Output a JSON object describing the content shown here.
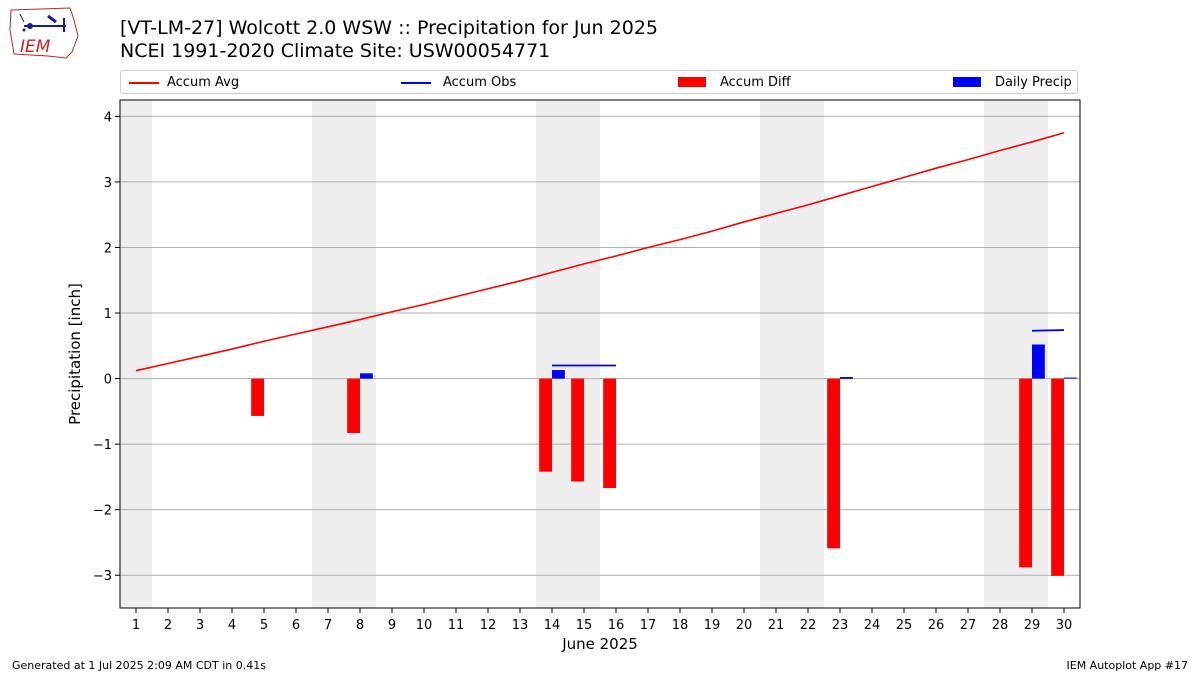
{
  "header": {
    "title_line1": "[VT-LM-27] Wolcott 2.0 WSW :: Precipitation for Jun 2025",
    "title_line2": "NCEI 1991-2020 Climate Site: USW00054771",
    "logo_text": "IEM"
  },
  "legend": {
    "items": [
      {
        "label": "Accum Avg",
        "kind": "line",
        "color": "#ff0000"
      },
      {
        "label": "Accum Obs",
        "kind": "line",
        "color": "#0000ff"
      },
      {
        "label": "Accum Diff",
        "kind": "box",
        "color": "#ff0000"
      },
      {
        "label": "Daily Precip",
        "kind": "box",
        "color": "#0000ff"
      }
    ],
    "placement": "top, above plot"
  },
  "footer": {
    "left": "Generated at 1 Jul 2025 2:09 AM CDT in 0.41s",
    "right": "IEM Autoplot App #17"
  },
  "chart_data": {
    "type": "bar",
    "xlabel": "June 2025",
    "ylabel": "Precipitation [inch]",
    "x": [
      1,
      2,
      3,
      4,
      5,
      6,
      7,
      8,
      9,
      10,
      11,
      12,
      13,
      14,
      15,
      16,
      17,
      18,
      19,
      20,
      21,
      22,
      23,
      24,
      25,
      26,
      27,
      28,
      29,
      30
    ],
    "xlim": [
      0.5,
      30.5
    ],
    "ylim": [
      -3.5,
      4.25
    ],
    "yticks": [
      -3,
      -2,
      -1,
      0,
      1,
      2,
      3,
      4
    ],
    "ytick_labels": [
      "−3",
      "−2",
      "−1",
      "0",
      "1",
      "2",
      "3",
      "4"
    ],
    "grid": "horizontal",
    "weekend_shading": [
      [
        0.5,
        1.5
      ],
      [
        6.5,
        8.5
      ],
      [
        13.5,
        15.5
      ],
      [
        20.5,
        22.5
      ],
      [
        27.5,
        29.5
      ]
    ],
    "colors": {
      "avg": "#ff0000",
      "obs": "#0000ff",
      "diff": "#ff0000",
      "daily": "#0000ff",
      "shade": "#eeeeee",
      "grid": "#b0b0b0"
    },
    "series": [
      {
        "name": "Accum Avg",
        "kind": "line",
        "x": [
          1,
          2,
          3,
          4,
          5,
          6,
          7,
          8,
          9,
          10,
          11,
          12,
          13,
          14,
          15,
          16,
          17,
          18,
          19,
          20,
          21,
          22,
          23,
          24,
          25,
          26,
          27,
          28,
          29,
          30
        ],
        "values": [
          0.12,
          0.23,
          0.34,
          0.45,
          0.57,
          0.68,
          0.79,
          0.9,
          1.02,
          1.13,
          1.25,
          1.37,
          1.49,
          1.62,
          1.75,
          1.87,
          2.0,
          2.12,
          2.25,
          2.39,
          2.52,
          2.65,
          2.79,
          2.93,
          3.07,
          3.21,
          3.34,
          3.48,
          3.61,
          3.75
        ]
      },
      {
        "name": "Accum Obs",
        "kind": "segments",
        "segments": [
          {
            "x": [
              14,
              16
            ],
            "values": [
              0.2,
              0.2
            ]
          },
          {
            "x": [
              23,
              23.4
            ],
            "values": [
              0.01,
              0.01
            ]
          },
          {
            "x": [
              29,
              30
            ],
            "values": [
              0.73,
              0.74
            ]
          }
        ]
      },
      {
        "name": "Accum Diff",
        "kind": "bar",
        "x": [
          5,
          8,
          14,
          15,
          16,
          23,
          29,
          30
        ],
        "values": [
          -0.57,
          -0.83,
          -1.42,
          -1.57,
          -1.67,
          -2.59,
          -2.88,
          -3.01
        ]
      },
      {
        "name": "Daily Precip",
        "kind": "bar",
        "x": [
          8,
          14,
          23,
          29,
          30
        ],
        "values": [
          0.08,
          0.13,
          0.01,
          0.52,
          0.01
        ]
      }
    ]
  }
}
